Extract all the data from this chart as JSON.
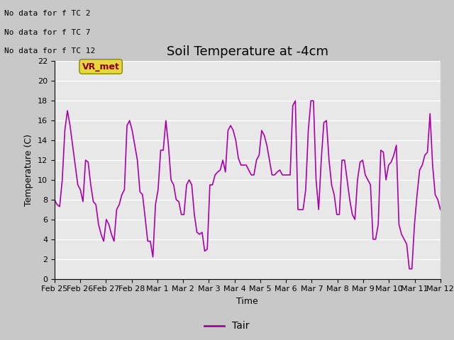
{
  "title": "Soil Temperature at -4cm",
  "xlabel": "Time",
  "ylabel": "Temperature (C)",
  "ylim": [
    0,
    22
  ],
  "yticks": [
    0,
    2,
    4,
    6,
    8,
    10,
    12,
    14,
    16,
    18,
    20,
    22
  ],
  "xtick_labels": [
    "Feb 25",
    "Feb 26",
    "Feb 27",
    "Feb 28",
    "Mar 1",
    "Mar 2",
    "Mar 3",
    "Mar 4",
    "Mar 5",
    "Mar 6",
    "Mar 7",
    "Mar 8",
    "Mar 9",
    "Mar 10",
    "Mar 11",
    "Mar 12"
  ],
  "line_color": "#aa00aa",
  "line_label": "Tair",
  "annotations": [
    "No data for f TC 2",
    "No data for f TC 7",
    "No data for f TC 12"
  ],
  "vr_met_label": "VR_met",
  "background_color": "#e8e8e8",
  "grid_color": "#ffffff",
  "title_fontsize": 13,
  "axis_fontsize": 9,
  "tick_fontsize": 8,
  "anno_fontsize": 8,
  "y_values": [
    8.0,
    7.5,
    7.3,
    10.0,
    15.0,
    17.0,
    15.5,
    13.5,
    11.5,
    9.5,
    9.0,
    7.8,
    12.0,
    11.8,
    9.5,
    7.8,
    7.5,
    5.5,
    4.5,
    3.8,
    6.0,
    5.5,
    4.5,
    3.8,
    7.0,
    7.5,
    8.5,
    9.0,
    15.5,
    16.0,
    15.0,
    13.5,
    12.0,
    8.8,
    8.5,
    6.2,
    3.8,
    3.8,
    2.2,
    7.5,
    9.0,
    13.0,
    13.0,
    16.0,
    13.5,
    10.0,
    9.5,
    8.0,
    7.8,
    6.5,
    6.5,
    9.5,
    10.0,
    9.5,
    6.5,
    4.7,
    4.5,
    4.7,
    2.8,
    3.0,
    9.5,
    9.5,
    10.5,
    10.8,
    11.0,
    12.0,
    10.8,
    15.0,
    15.5,
    15.0,
    14.0,
    12.2,
    11.5,
    11.5,
    11.5,
    11.0,
    10.5,
    10.5,
    12.0,
    12.5,
    15.0,
    14.5,
    13.5,
    12.0,
    10.5,
    10.5,
    10.8,
    11.0,
    10.5,
    10.5,
    10.5,
    10.5,
    17.5,
    18.0,
    7.0,
    7.0,
    7.0,
    9.0,
    15.0,
    18.0,
    18.0,
    10.0,
    7.0,
    12.0,
    15.8,
    16.0,
    12.0,
    9.5,
    8.5,
    6.5,
    6.5,
    12.0,
    12.0,
    10.0,
    8.0,
    6.5,
    6.0,
    10.0,
    11.8,
    12.0,
    10.5,
    10.0,
    9.5,
    4.0,
    4.0,
    5.5,
    13.0,
    12.8,
    10.0,
    11.5,
    11.8,
    12.5,
    13.5,
    5.5,
    4.5,
    4.0,
    3.5,
    1.0,
    1.0,
    5.5,
    8.5,
    11.0,
    11.5,
    12.5,
    12.8,
    16.7,
    11.5,
    8.5,
    8.0,
    7.0
  ]
}
